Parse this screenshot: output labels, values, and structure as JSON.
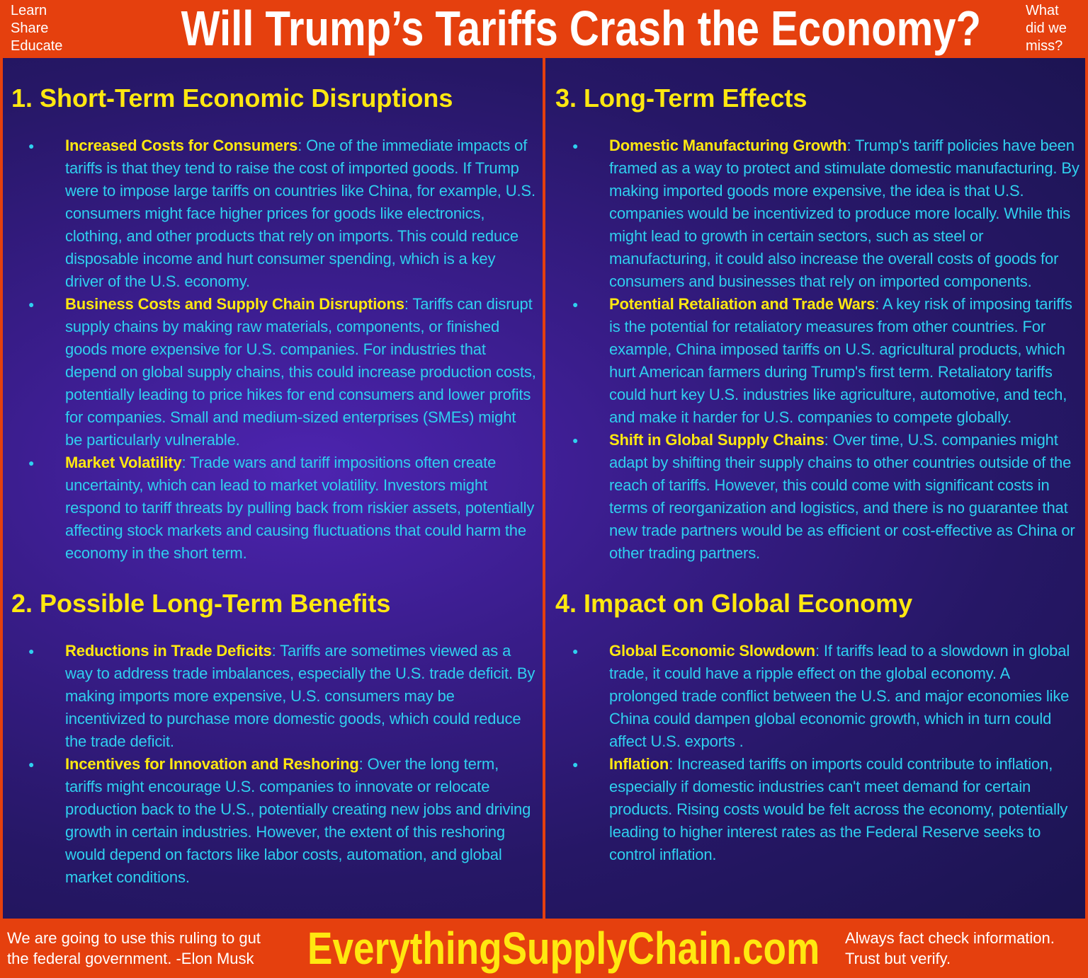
{
  "header": {
    "left_lines": [
      "Learn",
      "Share",
      "Educate"
    ],
    "title": "Will Trump’s Tariffs Crash the Economy?",
    "right_lines": [
      "What",
      "did we",
      "miss?"
    ]
  },
  "sections": [
    {
      "title": "1. Short-Term Economic Disruptions",
      "items": [
        {
          "term": "Increased Costs for Consumers",
          "text": ": One of the immediate impacts of tariffs is that they tend to raise the cost of imported goods. If Trump were to impose large tariffs on countries like China, for example, U.S. consumers might face higher prices for goods like electronics, clothing, and other products that rely on imports. This could reduce disposable income and hurt consumer spending, which is a key driver of the U.S. economy."
        },
        {
          "term": "Business Costs and Supply Chain Disruptions",
          "text": ": Tariffs can disrupt supply chains by making raw materials, components, or finished goods more expensive for U.S. companies. For industries that depend on global supply chains, this could increase production costs, potentially leading to price hikes for end consumers and lower profits for companies. Small and medium-sized enterprises (SMEs) might be particularly vulnerable."
        },
        {
          "term": "Market Volatility",
          "text": ": Trade wars and tariff impositions often create uncertainty, which can lead to market volatility. Investors might respond to tariff threats by pulling back from riskier assets, potentially affecting stock markets and causing fluctuations that could harm the economy in the short term."
        }
      ]
    },
    {
      "title": "2. Possible Long-Term Benefits",
      "items": [
        {
          "term": "Reductions in Trade Deficits",
          "text": ": Tariffs are sometimes viewed as a way to address trade imbalances, especially the U.S. trade deficit. By making imports more expensive, U.S. consumers may be incentivized to purchase more domestic goods, which could reduce the trade deficit."
        },
        {
          "term": "Incentives for Innovation and Reshoring",
          "text": ": Over the long term, tariffs might encourage U.S. companies to innovate or relocate production back to the U.S., potentially creating new jobs and driving growth in certain industries. However, the extent of this reshoring would depend on factors like labor costs, automation, and global market conditions."
        }
      ]
    },
    {
      "title": "3. Long-Term Effects",
      "items": [
        {
          "term": "Domestic Manufacturing Growth",
          "text": ": Trump's tariff policies have been framed as a way to protect and stimulate domestic manufacturing. By making imported goods more expensive, the idea is that U.S. companies would be incentivized to produce more locally. While this might lead to growth in certain sectors, such as steel or manufacturing, it could also increase the overall costs of goods for consumers and businesses that rely on imported components."
        },
        {
          "term": "Potential Retaliation and Trade Wars",
          "text": ": A key risk of imposing tariffs is the potential for retaliatory measures from other countries. For example, China imposed tariffs on U.S. agricultural products, which hurt American farmers during Trump's first term. Retaliatory tariffs could hurt key U.S. industries like agriculture, automotive, and tech, and make it harder for U.S. companies to compete globally."
        },
        {
          "term": "Shift in Global Supply Chains",
          "text": ": Over time, U.S. companies might adapt by shifting their supply chains to other countries outside of the reach of tariffs. However, this could come with significant costs in terms of reorganization and logistics, and there is no guarantee that new trade partners would be as efficient or cost-effective as China or other trading partners."
        }
      ]
    },
    {
      "title": "4. Impact on Global Economy",
      "items": [
        {
          "term": "Global Economic Slowdown",
          "text": ": If tariffs lead to a slowdown in global trade, it could have a ripple effect on the global economy. A prolonged trade conflict between the U.S. and major economies like China could dampen global economic growth, which in turn could affect U.S. exports ."
        },
        {
          "term": "Inflation",
          "text": ": Increased tariffs on imports could contribute to inflation, especially if domestic industries can't meet demand for certain products. Rising costs would be felt across the economy, potentially leading to higher interest rates as the Federal Reserve seeks to control inflation."
        }
      ]
    }
  ],
  "footer": {
    "left_lines": [
      "We are going to use this ruling to gut",
      "the federal government. -Elon Musk"
    ],
    "site": "EverythingSupplyChain.com",
    "right_lines": [
      "Always fact check information.",
      "Trust but verify."
    ]
  }
}
